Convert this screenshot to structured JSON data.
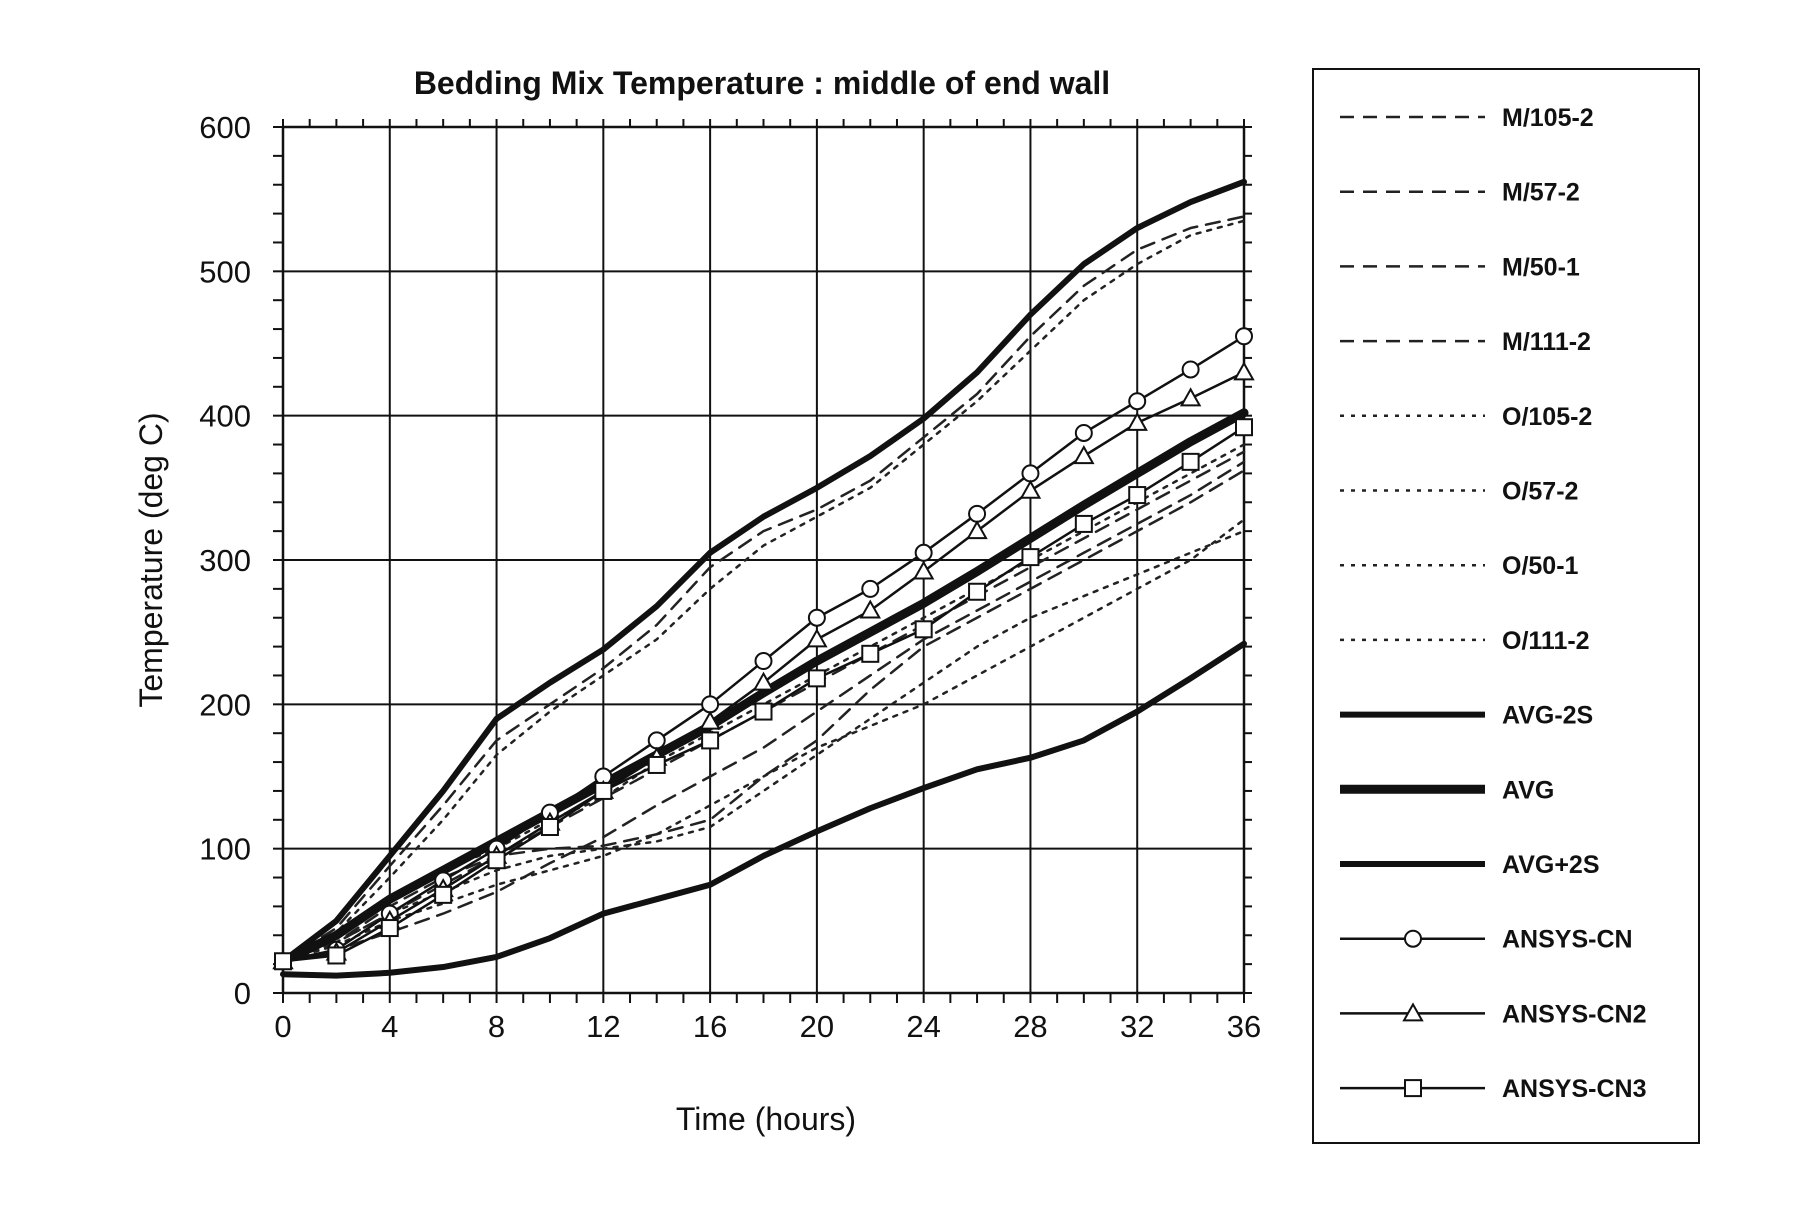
{
  "chart_data": {
    "type": "line",
    "title": "Bedding Mix Temperature : middle of end wall",
    "xlabel": "Time (hours)",
    "ylabel": "Temperature (deg C)",
    "xlim": [
      0,
      36
    ],
    "ylim": [
      0,
      600
    ],
    "xticks": [
      0,
      4,
      8,
      12,
      16,
      20,
      24,
      28,
      32,
      36
    ],
    "yticks": [
      0,
      100,
      200,
      300,
      400,
      500,
      600
    ],
    "grid": true,
    "legend_position": "right-outside",
    "x": [
      0,
      2,
      4,
      6,
      8,
      10,
      12,
      14,
      16,
      18,
      20,
      22,
      24,
      26,
      28,
      30,
      32,
      34,
      36
    ],
    "series": [
      {
        "name": "M/105-2",
        "style": "dashed",
        "values": [
          22,
          45,
          88,
          130,
          175,
          200,
          225,
          255,
          295,
          320,
          335,
          355,
          385,
          415,
          455,
          490,
          515,
          530,
          538
        ]
      },
      {
        "name": "M/57-2",
        "style": "dashed",
        "values": [
          22,
          35,
          55,
          75,
          95,
          115,
          135,
          155,
          175,
          195,
          215,
          235,
          255,
          275,
          295,
          315,
          335,
          355,
          375
        ]
      },
      {
        "name": "M/50-1",
        "style": "dashed",
        "values": [
          22,
          30,
          42,
          55,
          70,
          90,
          108,
          130,
          150,
          170,
          195,
          220,
          245,
          265,
          285,
          305,
          325,
          345,
          368
        ]
      },
      {
        "name": "M/111-2",
        "style": "dashed",
        "values": [
          22,
          35,
          60,
          80,
          95,
          100,
          102,
          110,
          120,
          150,
          175,
          210,
          240,
          260,
          280,
          300,
          320,
          340,
          362
        ]
      },
      {
        "name": "O/105-2",
        "style": "dotted",
        "values": [
          22,
          42,
          80,
          120,
          165,
          195,
          220,
          245,
          280,
          310,
          330,
          350,
          380,
          410,
          445,
          480,
          505,
          525,
          535
        ]
      },
      {
        "name": "O/57-2",
        "style": "dotted",
        "values": [
          22,
          40,
          65,
          85,
          100,
          120,
          135,
          160,
          180,
          200,
          220,
          240,
          260,
          280,
          300,
          320,
          340,
          360,
          380
        ]
      },
      {
        "name": "O/50-1",
        "style": "dotted",
        "values": [
          22,
          35,
          55,
          70,
          85,
          95,
          100,
          105,
          115,
          140,
          165,
          190,
          215,
          240,
          260,
          275,
          290,
          305,
          320
        ]
      },
      {
        "name": "O/111-2",
        "style": "dotted",
        "values": [
          22,
          33,
          50,
          62,
          75,
          85,
          95,
          110,
          130,
          150,
          170,
          185,
          200,
          220,
          240,
          260,
          280,
          300,
          328
        ]
      },
      {
        "name": "AVG-2S",
        "style": "solid-thick",
        "values": [
          13,
          12,
          14,
          18,
          25,
          38,
          55,
          65,
          75,
          95,
          112,
          128,
          142,
          155,
          163,
          175,
          195,
          218,
          242
        ]
      },
      {
        "name": "AVG",
        "style": "solid-heavy",
        "values": [
          22,
          40,
          65,
          85,
          105,
          125,
          145,
          165,
          185,
          208,
          230,
          250,
          270,
          292,
          315,
          338,
          360,
          382,
          402
        ]
      },
      {
        "name": "AVG+2S",
        "style": "solid-thick",
        "values": [
          22,
          50,
          95,
          140,
          190,
          215,
          238,
          268,
          305,
          330,
          350,
          372,
          398,
          430,
          470,
          505,
          530,
          548,
          562
        ]
      },
      {
        "name": "ANSYS-CN",
        "style": "circle",
        "values": [
          22,
          30,
          55,
          78,
          100,
          125,
          150,
          175,
          200,
          230,
          260,
          280,
          305,
          332,
          360,
          388,
          410,
          432,
          455
        ]
      },
      {
        "name": "ANSYS-CN2",
        "style": "triangle",
        "values": [
          22,
          28,
          50,
          72,
          95,
          118,
          140,
          163,
          188,
          215,
          245,
          265,
          292,
          320,
          348,
          372,
          395,
          412,
          430
        ]
      },
      {
        "name": "ANSYS-CN3",
        "style": "square",
        "values": [
          22,
          26,
          45,
          68,
          92,
          115,
          140,
          158,
          175,
          195,
          218,
          235,
          252,
          278,
          302,
          325,
          345,
          368,
          392
        ]
      }
    ]
  }
}
